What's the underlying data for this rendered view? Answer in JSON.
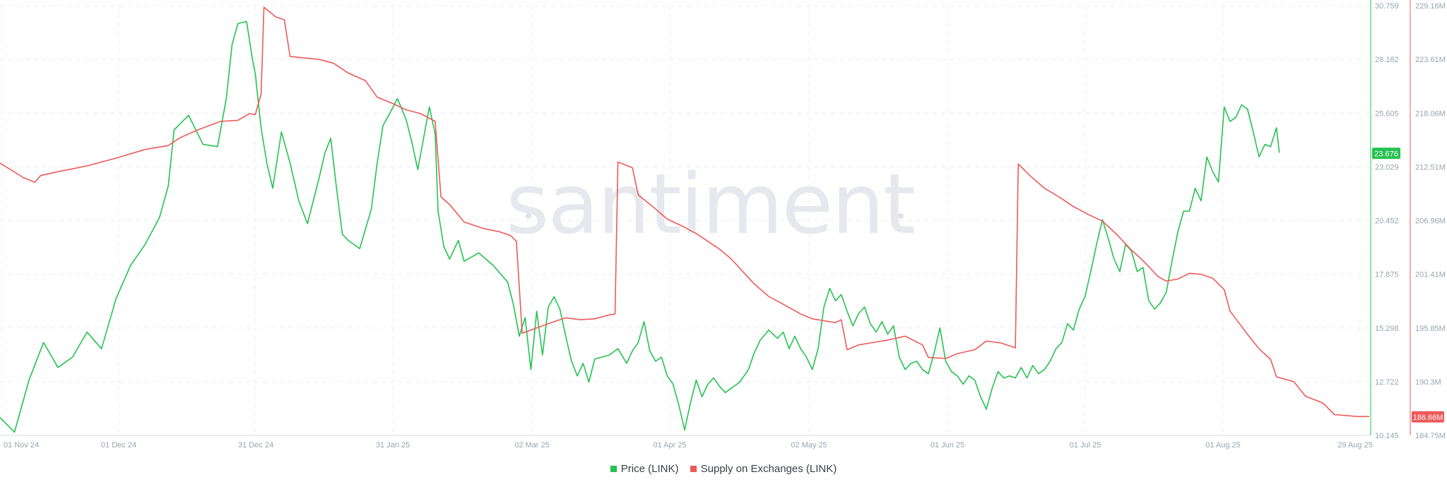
{
  "watermark": "santiment",
  "chart_data": {
    "type": "line",
    "x_labels": [
      "01 Nov 24",
      "01 Dec 24",
      "31 Dec 24",
      "31 Jan 25",
      "02 Mar 25",
      "01 Apr 25",
      "02 May 25",
      "01 Jun 25",
      "01 Jul 25",
      "01 Aug 25",
      "29 Aug 25"
    ],
    "y_axis_price": {
      "min": 10.145,
      "max": 30.759,
      "ticks": [
        "30.759",
        "28.182",
        "25.605",
        "23.029",
        "20.452",
        "17.875",
        "15.298",
        "12.722",
        "10.145"
      ]
    },
    "y_axis_supply": {
      "unit": "M",
      "min": 184.75,
      "max": 229.16,
      "ticks": [
        "229.16M",
        "223.61M",
        "218.06M",
        "212.51M",
        "206.96M",
        "201.41M",
        "195.85M",
        "190.3M",
        "184.75M"
      ]
    },
    "current_price_label": "23.676",
    "current_supply_label": "186.66M",
    "series": [
      {
        "name": "Price (LINK)",
        "color": "#26c250",
        "axis": "price",
        "values": [
          [
            0,
            11.0
          ],
          [
            5,
            10.3
          ],
          [
            10,
            12.8
          ],
          [
            15,
            14.6
          ],
          [
            20,
            13.4
          ],
          [
            25,
            13.9
          ],
          [
            30,
            15.1
          ],
          [
            35,
            14.3
          ],
          [
            40,
            16.7
          ],
          [
            45,
            18.3
          ],
          [
            50,
            19.3
          ],
          [
            55,
            20.6
          ],
          [
            58,
            22.1
          ],
          [
            60,
            24.8
          ],
          [
            65,
            25.5
          ],
          [
            70,
            24.1
          ],
          [
            75,
            24.0
          ],
          [
            78,
            26.3
          ],
          [
            80,
            28.9
          ],
          [
            82,
            29.9
          ],
          [
            85,
            30.0
          ],
          [
            87,
            28.2
          ],
          [
            88,
            27.5
          ],
          [
            90,
            24.9
          ],
          [
            92,
            23.2
          ],
          [
            94,
            22.0
          ],
          [
            97,
            24.7
          ],
          [
            100,
            23.2
          ],
          [
            103,
            21.4
          ],
          [
            106,
            20.3
          ],
          [
            110,
            22.5
          ],
          [
            112,
            23.7
          ],
          [
            114,
            24.4
          ],
          [
            116,
            22.0
          ],
          [
            118,
            19.8
          ],
          [
            120,
            19.5
          ],
          [
            124,
            19.1
          ],
          [
            128,
            21.0
          ],
          [
            130,
            23.2
          ],
          [
            132,
            25.0
          ],
          [
            134,
            25.5
          ],
          [
            137,
            26.3
          ],
          [
            140,
            25.3
          ],
          [
            142,
            24.2
          ],
          [
            144,
            22.9
          ],
          [
            146,
            24.4
          ],
          [
            148,
            25.9
          ],
          [
            150,
            24.6
          ],
          [
            151,
            20.9
          ],
          [
            153,
            19.2
          ],
          [
            155,
            18.6
          ],
          [
            158,
            19.5
          ],
          [
            160,
            18.5
          ],
          [
            165,
            18.9
          ],
          [
            170,
            18.3
          ],
          [
            175,
            17.5
          ],
          [
            177,
            16.4
          ],
          [
            179,
            14.9
          ],
          [
            181,
            15.8
          ],
          [
            183,
            13.3
          ],
          [
            185,
            16.1
          ],
          [
            187,
            14.0
          ],
          [
            189,
            16.3
          ],
          [
            191,
            16.8
          ],
          [
            193,
            16.2
          ],
          [
            195,
            14.9
          ],
          [
            197,
            13.7
          ],
          [
            199,
            13.0
          ],
          [
            201,
            13.6
          ],
          [
            203,
            12.7
          ],
          [
            205,
            13.8
          ],
          [
            210,
            14.0
          ],
          [
            213,
            14.3
          ],
          [
            216,
            13.6
          ],
          [
            218,
            14.2
          ],
          [
            220,
            14.6
          ],
          [
            222,
            15.6
          ],
          [
            224,
            14.2
          ],
          [
            226,
            13.7
          ],
          [
            228,
            13.9
          ],
          [
            230,
            13.0
          ],
          [
            232,
            12.6
          ],
          [
            234,
            11.6
          ],
          [
            236,
            10.4
          ],
          [
            238,
            11.7
          ],
          [
            240,
            12.8
          ],
          [
            242,
            12.0
          ],
          [
            244,
            12.6
          ],
          [
            246,
            12.9
          ],
          [
            248,
            12.5
          ],
          [
            250,
            12.2
          ],
          [
            255,
            12.7
          ],
          [
            258,
            13.3
          ],
          [
            260,
            14.1
          ],
          [
            262,
            14.7
          ],
          [
            265,
            15.2
          ],
          [
            268,
            14.8
          ],
          [
            270,
            15.1
          ],
          [
            272,
            14.3
          ],
          [
            274,
            14.9
          ],
          [
            276,
            14.3
          ],
          [
            278,
            13.9
          ],
          [
            280,
            13.3
          ],
          [
            282,
            14.3
          ],
          [
            284,
            16.3
          ],
          [
            286,
            17.2
          ],
          [
            288,
            16.6
          ],
          [
            290,
            16.9
          ],
          [
            292,
            16.1
          ],
          [
            294,
            15.4
          ],
          [
            296,
            16.0
          ],
          [
            298,
            16.3
          ],
          [
            300,
            15.5
          ],
          [
            302,
            15.1
          ],
          [
            304,
            15.6
          ],
          [
            306,
            15.0
          ],
          [
            308,
            15.4
          ],
          [
            310,
            13.9
          ],
          [
            312,
            13.3
          ],
          [
            314,
            13.6
          ],
          [
            316,
            13.7
          ],
          [
            318,
            13.3
          ],
          [
            320,
            13.1
          ],
          [
            322,
            14.1
          ],
          [
            324,
            15.3
          ],
          [
            326,
            13.7
          ],
          [
            328,
            13.2
          ],
          [
            330,
            13.0
          ],
          [
            332,
            12.6
          ],
          [
            334,
            13.0
          ],
          [
            336,
            12.8
          ],
          [
            338,
            12.0
          ],
          [
            340,
            11.4
          ],
          [
            342,
            12.4
          ],
          [
            344,
            13.2
          ],
          [
            346,
            12.9
          ],
          [
            348,
            13.0
          ],
          [
            350,
            12.9
          ],
          [
            352,
            13.4
          ],
          [
            354,
            12.9
          ],
          [
            356,
            13.5
          ],
          [
            358,
            13.1
          ],
          [
            360,
            13.3
          ],
          [
            362,
            13.7
          ],
          [
            364,
            14.3
          ],
          [
            366,
            14.6
          ],
          [
            368,
            15.5
          ],
          [
            370,
            15.2
          ],
          [
            372,
            16.2
          ],
          [
            374,
            16.8
          ],
          [
            376,
            18.0
          ],
          [
            378,
            19.3
          ],
          [
            380,
            20.5
          ],
          [
            382,
            19.6
          ],
          [
            384,
            18.6
          ],
          [
            386,
            18.0
          ],
          [
            388,
            19.3
          ],
          [
            390,
            19.0
          ],
          [
            392,
            18.0
          ],
          [
            394,
            18.2
          ],
          [
            396,
            16.6
          ],
          [
            398,
            16.2
          ],
          [
            400,
            16.5
          ],
          [
            402,
            17.0
          ],
          [
            404,
            18.5
          ],
          [
            406,
            19.9
          ],
          [
            408,
            20.9
          ],
          [
            410,
            20.9
          ],
          [
            412,
            22.0
          ],
          [
            414,
            21.4
          ],
          [
            416,
            23.5
          ],
          [
            418,
            22.8
          ],
          [
            420,
            22.3
          ],
          [
            422,
            25.9
          ],
          [
            424,
            25.2
          ],
          [
            426,
            25.4
          ],
          [
            428,
            26.0
          ],
          [
            430,
            25.8
          ],
          [
            432,
            24.7
          ],
          [
            434,
            23.5
          ],
          [
            436,
            24.1
          ],
          [
            438,
            24.0
          ],
          [
            440,
            24.9
          ],
          [
            441,
            23.7
          ]
        ]
      },
      {
        "name": "Supply on Exchanges (LINK)",
        "color": "#ed5a5a",
        "axis": "supply",
        "values": [
          [
            0,
            212.9
          ],
          [
            8,
            211.4
          ],
          [
            12,
            210.9
          ],
          [
            14,
            211.6
          ],
          [
            20,
            212.0
          ],
          [
            30,
            212.6
          ],
          [
            40,
            213.4
          ],
          [
            50,
            214.3
          ],
          [
            58,
            214.7
          ],
          [
            62,
            215.5
          ],
          [
            68,
            216.3
          ],
          [
            76,
            217.2
          ],
          [
            82,
            217.3
          ],
          [
            86,
            218.0
          ],
          [
            88,
            217.9
          ],
          [
            90,
            220.0
          ],
          [
            91,
            229.0
          ],
          [
            95,
            228.0
          ],
          [
            98,
            227.7
          ],
          [
            100,
            223.9
          ],
          [
            110,
            223.6
          ],
          [
            115,
            223.2
          ],
          [
            120,
            222.2
          ],
          [
            126,
            221.4
          ],
          [
            130,
            219.7
          ],
          [
            135,
            219.1
          ],
          [
            140,
            218.4
          ],
          [
            145,
            218.0
          ],
          [
            150,
            217.2
          ],
          [
            152,
            209.4
          ],
          [
            155,
            208.6
          ],
          [
            160,
            206.8
          ],
          [
            167,
            206.1
          ],
          [
            172,
            205.8
          ],
          [
            176,
            205.4
          ],
          [
            178,
            204.8
          ],
          [
            180,
            195.3
          ],
          [
            190,
            196.4
          ],
          [
            195,
            196.9
          ],
          [
            200,
            196.7
          ],
          [
            205,
            196.8
          ],
          [
            210,
            197.2
          ],
          [
            212,
            197.3
          ],
          [
            213,
            213.0
          ],
          [
            218,
            212.4
          ],
          [
            220,
            209.6
          ],
          [
            225,
            208.4
          ],
          [
            230,
            207.1
          ],
          [
            235,
            206.4
          ],
          [
            240,
            205.6
          ],
          [
            248,
            204.0
          ],
          [
            252,
            203.0
          ],
          [
            256,
            201.7
          ],
          [
            260,
            200.4
          ],
          [
            265,
            199.1
          ],
          [
            270,
            198.3
          ],
          [
            276,
            197.3
          ],
          [
            280,
            196.8
          ],
          [
            284,
            196.6
          ],
          [
            288,
            196.4
          ],
          [
            290,
            196.7
          ],
          [
            292,
            193.6
          ],
          [
            296,
            194.1
          ],
          [
            300,
            194.3
          ],
          [
            306,
            194.6
          ],
          [
            312,
            195.0
          ],
          [
            318,
            194.1
          ],
          [
            320,
            192.8
          ],
          [
            326,
            192.7
          ],
          [
            330,
            193.2
          ],
          [
            336,
            193.6
          ],
          [
            340,
            194.5
          ],
          [
            345,
            194.3
          ],
          [
            350,
            193.8
          ],
          [
            351,
            212.8
          ],
          [
            355,
            211.6
          ],
          [
            360,
            210.3
          ],
          [
            365,
            209.4
          ],
          [
            370,
            208.4
          ],
          [
            375,
            207.6
          ],
          [
            380,
            206.9
          ],
          [
            385,
            205.5
          ],
          [
            390,
            203.9
          ],
          [
            393,
            203.1
          ],
          [
            396,
            202.2
          ],
          [
            399,
            201.2
          ],
          [
            402,
            200.7
          ],
          [
            406,
            200.9
          ],
          [
            410,
            201.5
          ],
          [
            414,
            201.4
          ],
          [
            418,
            201.0
          ],
          [
            422,
            199.8
          ],
          [
            424,
            197.6
          ],
          [
            426,
            196.8
          ],
          [
            430,
            195.2
          ],
          [
            434,
            193.7
          ],
          [
            438,
            192.6
          ],
          [
            440,
            190.8
          ],
          [
            446,
            190.3
          ],
          [
            450,
            188.8
          ],
          [
            456,
            188.1
          ],
          [
            460,
            186.9
          ],
          [
            468,
            186.7
          ],
          [
            472,
            186.7
          ]
        ]
      }
    ],
    "legend": [
      "Price (LINK)",
      "Supply on Exchanges (LINK)"
    ],
    "grid": true,
    "legend_position": "bottom-center"
  }
}
